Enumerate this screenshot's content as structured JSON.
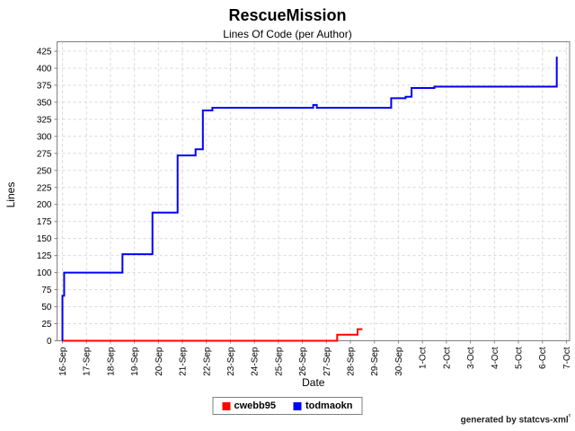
{
  "title": "RescueMission",
  "subtitle": "Lines Of Code (per Author)",
  "footer": {
    "text": "generated by statcvs-xml",
    "superscript": "²"
  },
  "legend": [
    {
      "label": "cwebb95",
      "color": "#ff0000"
    },
    {
      "label": "todmaokn",
      "color": "#0000ff"
    }
  ],
  "chart_data": {
    "type": "line",
    "title": "RescueMission",
    "subtitle": "Lines Of Code (per Author)",
    "xlabel": "Date",
    "ylabel": "Lines",
    "x_unit": "days since 16-Sep",
    "x_tick_labels": [
      "16-Sep",
      "17-Sep",
      "18-Sep",
      "19-Sep",
      "20-Sep",
      "21-Sep",
      "22-Sep",
      "23-Sep",
      "24-Sep",
      "25-Sep",
      "26-Sep",
      "27-Sep",
      "28-Sep",
      "29-Sep",
      "30-Sep",
      "1-Oct",
      "2-Oct",
      "3-Oct",
      "4-Oct",
      "5-Oct",
      "6-Oct",
      "7-Oct"
    ],
    "y_ticks": [
      0,
      25,
      50,
      75,
      100,
      125,
      150,
      175,
      200,
      225,
      250,
      275,
      300,
      325,
      350,
      375,
      400,
      425
    ],
    "ylim": [
      0,
      439
    ],
    "xlim": [
      -0.22,
      21.13
    ],
    "grid": true,
    "legend_position": "bottom",
    "series": [
      {
        "name": "cwebb95",
        "color": "#ff0000",
        "step": true,
        "points": [
          [
            0,
            0
          ],
          [
            11.45,
            0
          ],
          [
            11.45,
            9
          ],
          [
            12.3,
            9
          ],
          [
            12.3,
            17
          ],
          [
            12.5,
            17
          ]
        ]
      },
      {
        "name": "todmaokn",
        "color": "#0000ff",
        "step": true,
        "points": [
          [
            0,
            0
          ],
          [
            0,
            66
          ],
          [
            0.07,
            66
          ],
          [
            0.07,
            100
          ],
          [
            2.5,
            100
          ],
          [
            2.5,
            127
          ],
          [
            3.75,
            127
          ],
          [
            3.75,
            188
          ],
          [
            4.8,
            188
          ],
          [
            4.8,
            272
          ],
          [
            5.55,
            272
          ],
          [
            5.55,
            281
          ],
          [
            5.85,
            281
          ],
          [
            5.85,
            338
          ],
          [
            6.25,
            338
          ],
          [
            6.25,
            342
          ],
          [
            10.45,
            342
          ],
          [
            10.45,
            346
          ],
          [
            10.6,
            346
          ],
          [
            10.6,
            342
          ],
          [
            13.7,
            342
          ],
          [
            13.7,
            356
          ],
          [
            14.3,
            356
          ],
          [
            14.3,
            358
          ],
          [
            14.55,
            358
          ],
          [
            14.55,
            371
          ],
          [
            15.5,
            371
          ],
          [
            15.5,
            373
          ],
          [
            20.6,
            373
          ],
          [
            20.6,
            417
          ]
        ]
      }
    ]
  }
}
